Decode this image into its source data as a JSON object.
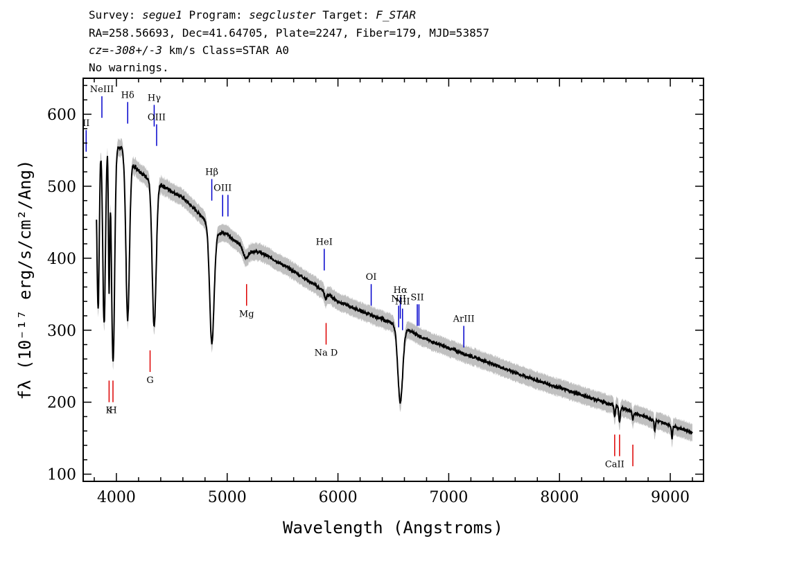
{
  "header": {
    "line1": {
      "survey_label": "Survey:",
      "survey": "segue1",
      "program_label": "Program:",
      "program": "segcluster",
      "target_label": "Target:",
      "target": "F_STAR"
    },
    "line2": "RA=258.56693, Dec=41.64705, Plate=2247, Fiber=179, MJD=53857",
    "line3": {
      "cz_label": "cz=",
      "cz_value": "-308+/-3",
      "cz_rest": "km/s Class=STAR A0"
    },
    "line4": "No warnings."
  },
  "chart_data": {
    "type": "line",
    "xlabel": "Wavelength (Angstroms)",
    "ylabel": "fλ (10⁻¹⁷ erg/s/cm²/Ang)",
    "xlim": [
      3700,
      9300
    ],
    "ylim": [
      90,
      650
    ],
    "x_ticks": [
      4000,
      5000,
      6000,
      7000,
      8000,
      9000
    ],
    "y_ticks": [
      100,
      200,
      300,
      400,
      500,
      600
    ],
    "grid": false,
    "colors": {
      "flux": "#000000",
      "error_band": "#c0c0c0",
      "emission": "#0000cc",
      "absorption": "#dd0000"
    },
    "flux_continuum": {
      "x": [
        3820,
        3850,
        3880,
        3950,
        4050,
        4150,
        4250,
        4400,
        4600,
        4800,
        4900,
        5000,
        5100,
        5200,
        5300,
        5400,
        5600,
        5800,
        6000,
        6200,
        6400,
        6600,
        6800,
        7000,
        7200,
        7400,
        7600,
        7800,
        8000,
        8200,
        8400,
        8600,
        8800,
        9000,
        9200
      ],
      "y": [
        513,
        562,
        558,
        560,
        552,
        530,
        515,
        502,
        484,
        454,
        436,
        434,
        420,
        410,
        408,
        400,
        382,
        362,
        340,
        327,
        315,
        303,
        287,
        275,
        264,
        253,
        241,
        230,
        220,
        210,
        200,
        190,
        178,
        168,
        158
      ]
    },
    "absorption_features": [
      {
        "x": 3835,
        "min": 330,
        "width": 10
      },
      {
        "x": 3889,
        "min": 308,
        "width": 12
      },
      {
        "x": 3934,
        "min": 360,
        "width": 6
      },
      {
        "x": 3970,
        "min": 255,
        "width": 14
      },
      {
        "x": 4102,
        "min": 315,
        "width": 16
      },
      {
        "x": 4341,
        "min": 304,
        "width": 18
      },
      {
        "x": 4862,
        "min": 282,
        "width": 20
      },
      {
        "x": 5170,
        "min": 400,
        "width": 20
      },
      {
        "x": 5890,
        "min": 343,
        "width": 10
      },
      {
        "x": 6563,
        "min": 200,
        "width": 22
      },
      {
        "x": 8498,
        "min": 181,
        "width": 6
      },
      {
        "x": 8542,
        "min": 172,
        "width": 6
      },
      {
        "x": 8662,
        "min": 174,
        "width": 6
      },
      {
        "x": 8860,
        "min": 160,
        "width": 5
      },
      {
        "x": 9015,
        "min": 150,
        "width": 5
      }
    ],
    "error_band_halfwidth": 12,
    "emission_lines": [
      {
        "label": "NeIII",
        "x": 3869,
        "y_top": 625,
        "y_bottom": 595
      },
      {
        "label": "Hδ",
        "x": 4102,
        "y_top": 617,
        "y_bottom": 587
      },
      {
        "label": "Hγ",
        "x": 4341,
        "y_top": 613,
        "y_bottom": 583
      },
      {
        "label": "OIII",
        "x": 4363,
        "y_top": 586,
        "y_bottom": 556
      },
      {
        "label": "II",
        "x": 3727,
        "y_top": 578,
        "y_bottom": 548
      },
      {
        "label": "Hβ",
        "x": 4861,
        "y_top": 510,
        "y_bottom": 480
      },
      {
        "label": "OIII",
        "x": 4959,
        "y_top": 488,
        "y_bottom": 458
      },
      {
        "label": "",
        "x": 5007,
        "y_top": 488,
        "y_bottom": 458
      },
      {
        "label": "HeI",
        "x": 5876,
        "y_top": 413,
        "y_bottom": 383
      },
      {
        "label": "OI",
        "x": 6300,
        "y_top": 364,
        "y_bottom": 334
      },
      {
        "label": "Hα",
        "x": 6563,
        "y_top": 346,
        "y_bottom": 316
      },
      {
        "label": "NII",
        "x": 6548,
        "y_top": 334,
        "y_bottom": 304
      },
      {
        "label": "NII",
        "x": 6583,
        "y_top": 330,
        "y_bottom": 300
      },
      {
        "label": "SII",
        "x": 6716,
        "y_top": 336,
        "y_bottom": 306
      },
      {
        "label": "",
        "x": 6731,
        "y_top": 336,
        "y_bottom": 306
      },
      {
        "label": "ArIII",
        "x": 7136,
        "y_top": 306,
        "y_bottom": 276
      }
    ],
    "absorption_lines": [
      {
        "label": "Mg",
        "x": 5175,
        "y_top": 364,
        "y_bottom": 334
      },
      {
        "label": "Na D",
        "x": 5893,
        "y_top": 310,
        "y_bottom": 280
      },
      {
        "label": "G",
        "x": 4304,
        "y_top": 272,
        "y_bottom": 242
      },
      {
        "label": "K",
        "x": 3934,
        "y_top": 230,
        "y_bottom": 200
      },
      {
        "label": "H",
        "x": 3969,
        "y_top": 230,
        "y_bottom": 200
      },
      {
        "label": "CaII",
        "x": 8498,
        "y_top": 155,
        "y_bottom": 125
      },
      {
        "label": "",
        "x": 8542,
        "y_top": 155,
        "y_bottom": 125
      },
      {
        "label": "",
        "x": 8662,
        "y_top": 141,
        "y_bottom": 111
      }
    ]
  }
}
